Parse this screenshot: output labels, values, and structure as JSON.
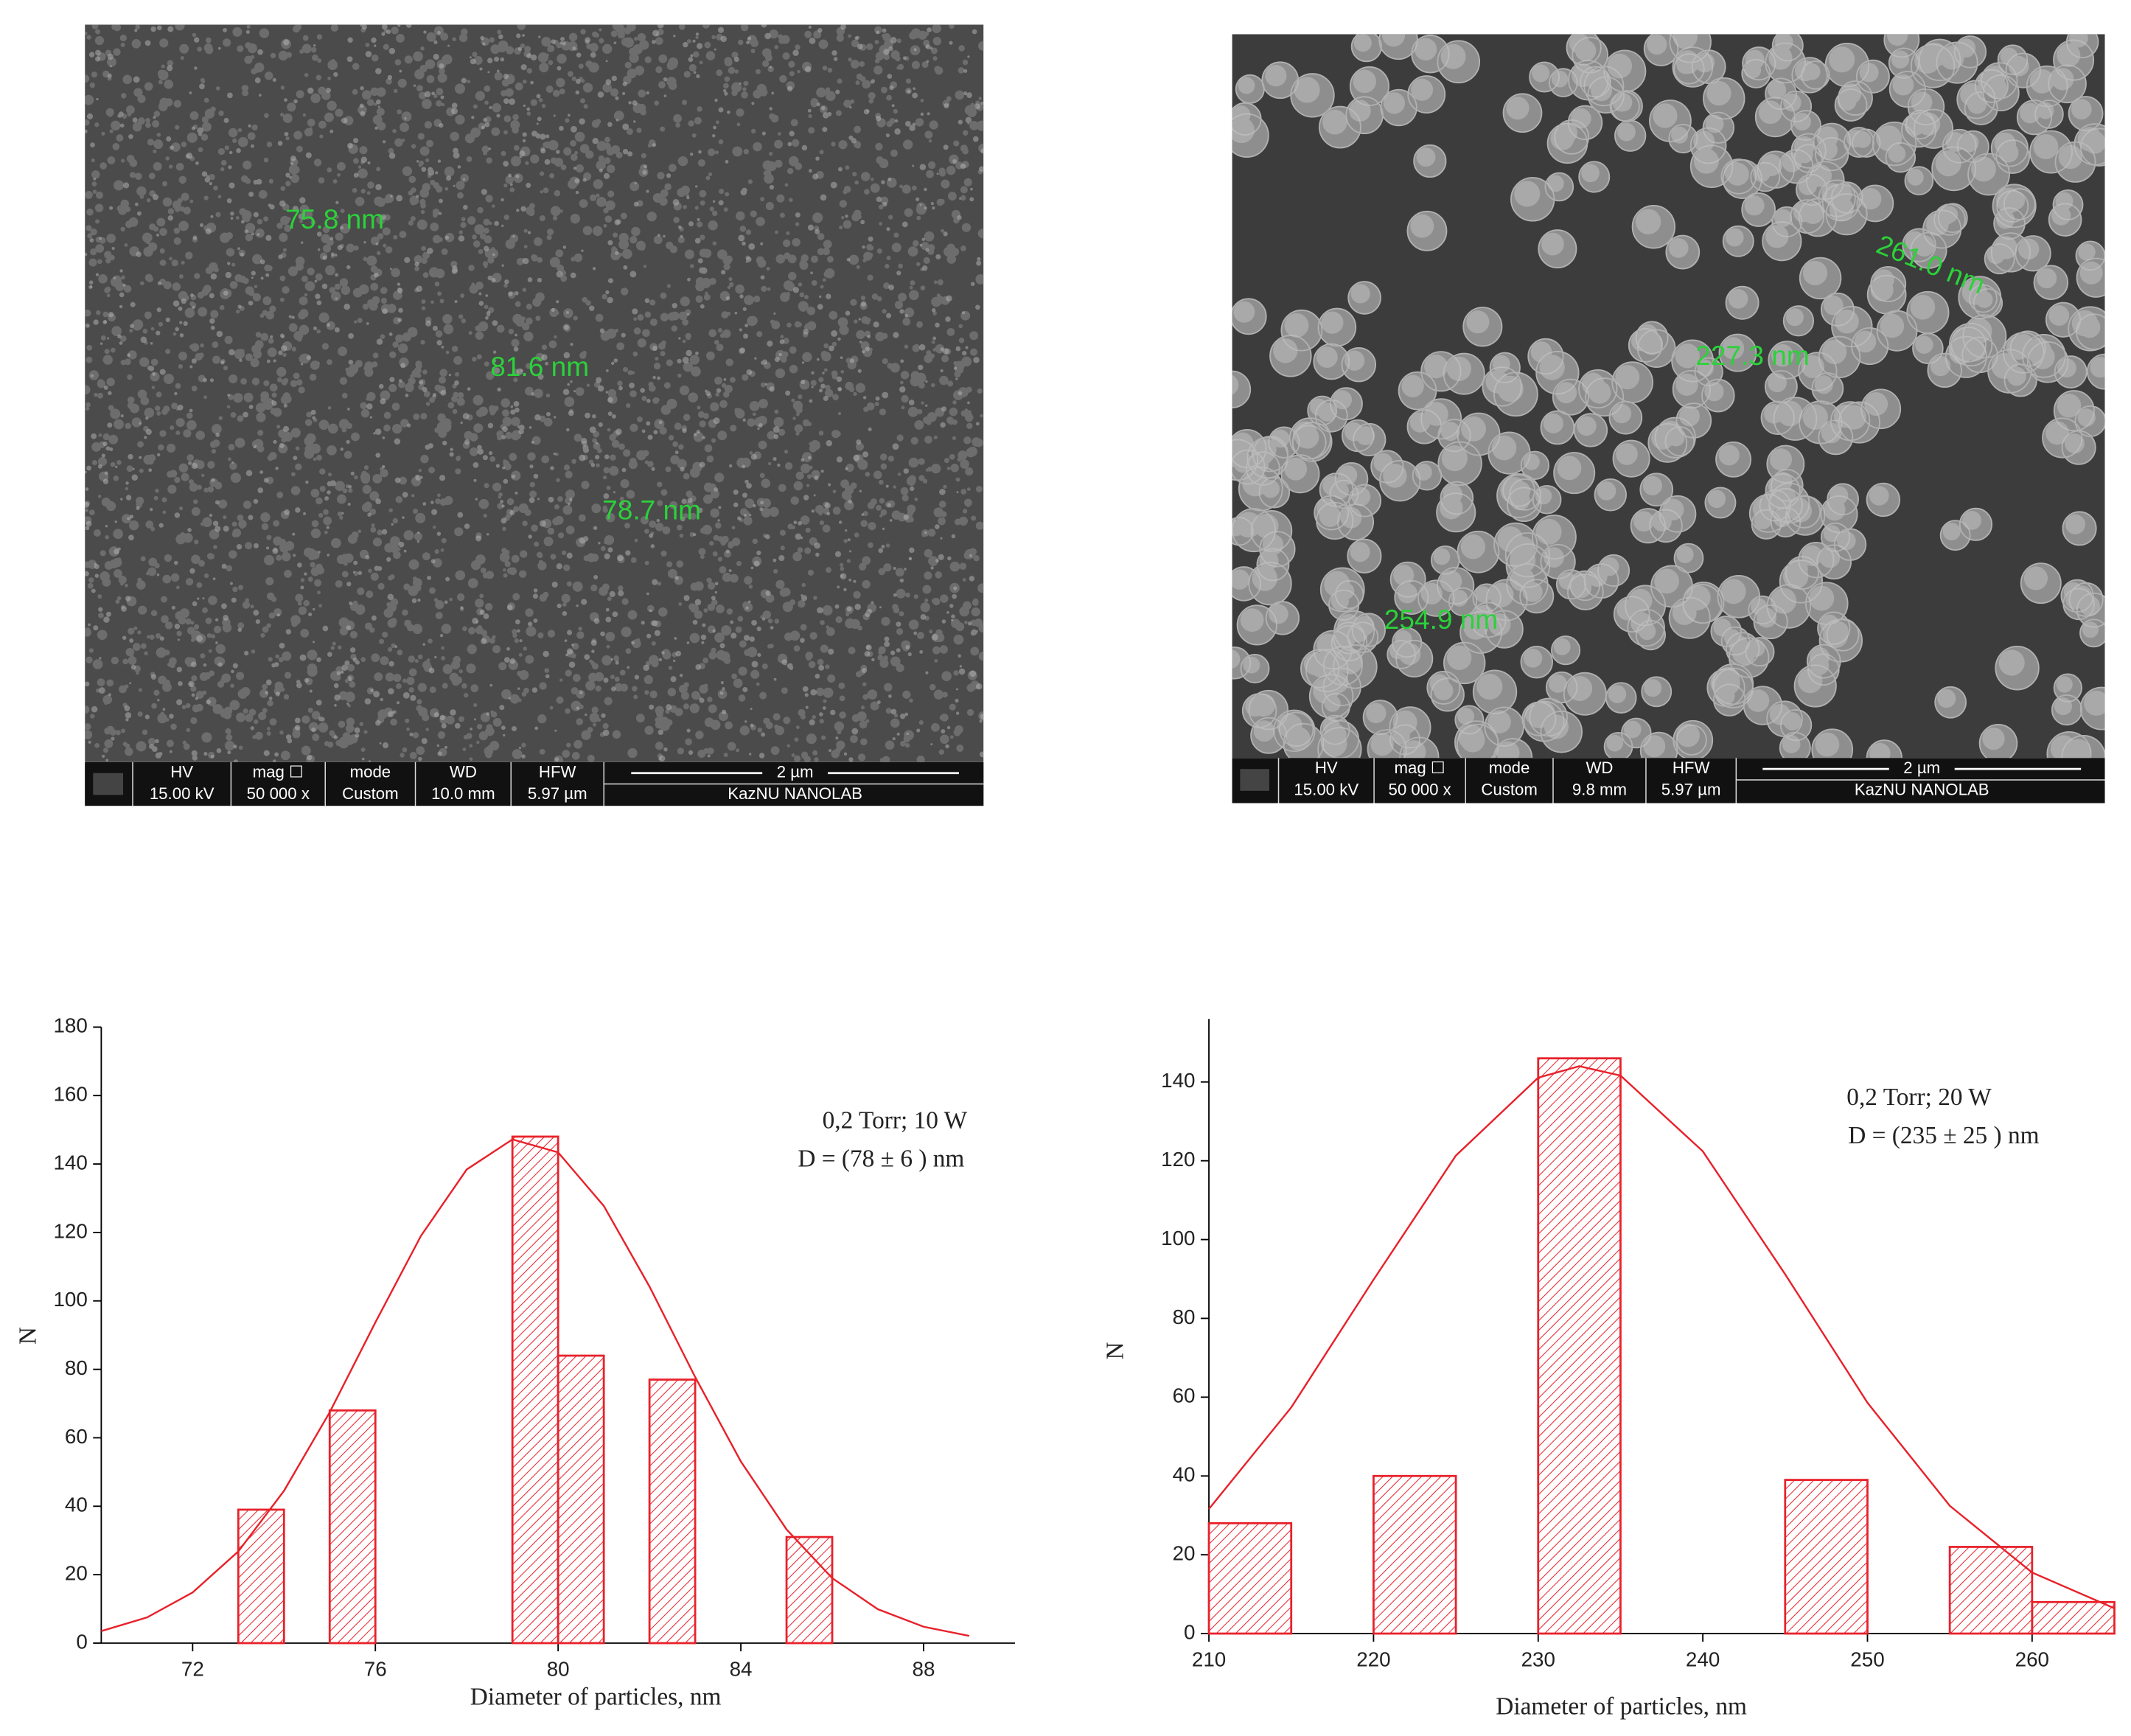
{
  "images": [
    {
      "measurements": [
        "75.8 nm",
        "81.6 nm",
        "78.7 nm"
      ],
      "info_headers": [
        "HV",
        "mag ☐",
        "mode",
        "WD",
        "HFW"
      ],
      "info_values": [
        "15.00 kV",
        "50 000 x",
        "Custom",
        "10.0 mm",
        "5.97 µm"
      ],
      "scale_bar": "2 µm",
      "lab": "KazNU NANOLAB"
    },
    {
      "measurements": [
        "261.0 nm",
        "227.3 nm",
        "254.9 nm"
      ],
      "info_headers": [
        "HV",
        "mag ☐",
        "mode",
        "WD",
        "HFW"
      ],
      "info_values": [
        "15.00 kV",
        "50 000 x",
        "Custom",
        "9.8 mm",
        "5.97 µm"
      ],
      "scale_bar": "2 µm",
      "lab": "KazNU NANOLAB"
    }
  ],
  "chart_data": [
    {
      "type": "histogram",
      "xlabel": "Diameter of particles, nm",
      "ylabel": "N",
      "annotations": [
        "0,2 Torr; 10 W",
        "D = (78 ± 6 ) nm"
      ],
      "bins": [
        73,
        74,
        75,
        76,
        77,
        78,
        79,
        80,
        81,
        82,
        83,
        84,
        85,
        86
      ],
      "values": [
        39,
        0,
        68,
        0,
        0,
        0,
        148,
        84,
        0,
        77,
        0,
        0,
        31
      ],
      "color": "#e8212a",
      "fit_curve": {
        "x": [
          70,
          71,
          72,
          73,
          74,
          75,
          76,
          77,
          78,
          79,
          80,
          81,
          82,
          83,
          84,
          85,
          86,
          87,
          88,
          89
        ],
        "values": [
          3.5,
          7.5,
          14.8,
          26.8,
          44.5,
          67.5,
          93.7,
          119.0,
          138.4,
          147.2,
          143.4,
          127.7,
          104.2,
          77.7,
          53.1,
          33.2,
          19.0,
          9.9,
          4.8,
          2.1
        ]
      },
      "xlim": [
        70,
        90
      ],
      "ylim": [
        0,
        180
      ],
      "xticks": [
        72,
        76,
        80,
        84,
        88
      ],
      "yticks": [
        0,
        20,
        40,
        60,
        80,
        100,
        120,
        140,
        160,
        180
      ]
    },
    {
      "type": "histogram",
      "xlabel": "Diameter of particles, nm",
      "ylabel": "N",
      "annotations": [
        "0,2 Torr; 20 W",
        "D = (235 ± 25 ) nm"
      ],
      "bins": [
        210,
        215,
        220,
        225,
        230,
        235,
        240,
        245,
        250,
        255,
        260,
        265
      ],
      "values": [
        28,
        0,
        40,
        0,
        146,
        0,
        0,
        39,
        0,
        22,
        8
      ],
      "color": "#e8212a",
      "fit_curve": {
        "x": [
          210,
          215,
          220,
          225,
          230,
          232.5,
          235,
          240,
          245,
          250,
          255,
          260,
          265
        ],
        "values": [
          31.6,
          57.4,
          89.8,
          121.3,
          141.1,
          144,
          141.6,
          122.4,
          91.2,
          58.6,
          32.4,
          15.5,
          6.4
        ]
      },
      "xlim": [
        210,
        265
      ],
      "ylim": [
        0,
        156
      ],
      "xticks": [
        210,
        220,
        230,
        240,
        250,
        260
      ],
      "yticks": [
        0,
        20,
        40,
        60,
        80,
        100,
        120,
        140
      ]
    }
  ]
}
